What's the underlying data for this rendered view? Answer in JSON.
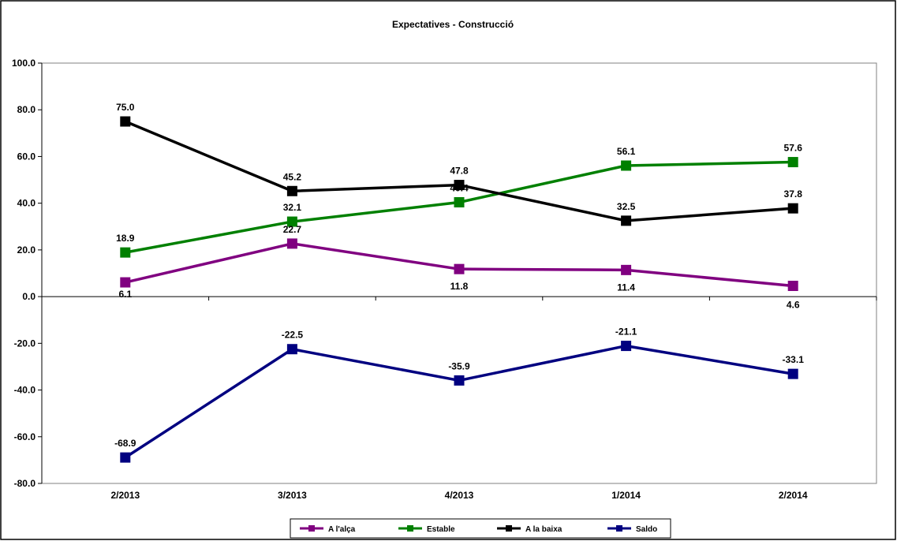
{
  "chart_data": {
    "type": "line",
    "title": "Expectatives - Construcció",
    "categories": [
      "2/2013",
      "3/2013",
      "4/2013",
      "1/2014",
      "2/2014"
    ],
    "ylim": [
      -80,
      100
    ],
    "yticks": [
      "100.0",
      "80.0",
      "60.0",
      "40.0",
      "20.0",
      "0.0",
      "-20.0",
      "-40.0",
      "-60.0",
      "-80.0"
    ],
    "grid": false,
    "legend_position": "bottom",
    "series": [
      {
        "name": "A l'alça",
        "color": "#800080",
        "values": [
          6.1,
          22.7,
          11.8,
          11.4,
          4.6
        ],
        "labels": [
          "6.1",
          "22.7",
          "11.8",
          "11.4",
          "4.6"
        ]
      },
      {
        "name": "Estable",
        "color": "#008000",
        "values": [
          18.9,
          32.1,
          40.4,
          56.1,
          57.6
        ],
        "labels": [
          "18.9",
          "32.1",
          "40.4",
          "56.1",
          "57.6"
        ]
      },
      {
        "name": "A la baixa",
        "color": "#000000",
        "values": [
          75.0,
          45.2,
          47.8,
          32.5,
          37.8
        ],
        "labels": [
          "75.0",
          "45.2",
          "47.8",
          "32.5",
          "37.8"
        ]
      },
      {
        "name": "Saldo",
        "color": "#000080",
        "values": [
          -68.9,
          -22.5,
          -35.9,
          -21.1,
          -33.1
        ],
        "labels": [
          "-68.9",
          "-22.5",
          "-35.9",
          "-21.1",
          "-33.1"
        ]
      }
    ]
  }
}
